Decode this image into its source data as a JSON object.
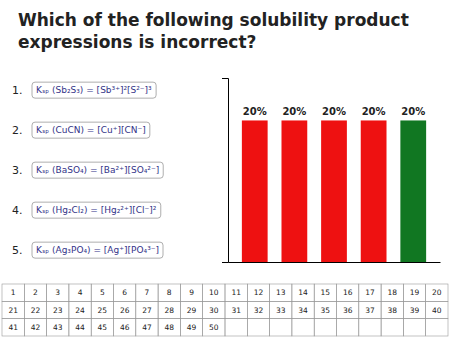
{
  "chart_data": {
    "type": "bar",
    "title": "Which of the following solubility product expressions is incorrect?",
    "categories": [
      null,
      null,
      null,
      null,
      null
    ],
    "values": [
      20,
      20,
      20,
      20,
      20
    ],
    "value_labels": [
      "20%",
      "20%",
      "20%",
      "20%",
      "20%"
    ],
    "data_labels": true,
    "colors": [
      "#EE1111",
      "#EE1111",
      "#EE1111",
      "#EE1111",
      "#117722"
    ],
    "ylim": [
      0,
      26
    ],
    "tick_labels": false,
    "annotations": [
      {
        "label": "1.",
        "text": "Kₛₚ (Sb₂S₃) = [Sb³⁺]²[S²⁻]³"
      },
      {
        "label": "2.",
        "text": "Kₛₚ (CuCN) = [Cu⁺][CN⁻]"
      },
      {
        "label": "3.",
        "text": "Kₛₚ (BaSO₄) = [Ba²⁺][SO₄²⁻]"
      },
      {
        "label": "4.",
        "text": "Kₛₚ (Hg₂Cl₂) = [Hg₂²⁺][Cl⁻]²"
      },
      {
        "label": "5.",
        "text": "Kₛₚ (Ag₃PO₄) = [Ag⁺][PO₄³⁻]"
      }
    ],
    "table_numbers": [
      [
        1,
        2,
        3,
        4,
        5,
        6,
        7,
        8,
        9,
        10,
        11,
        12,
        13,
        14,
        15,
        16,
        17,
        18,
        19,
        20
      ],
      [
        21,
        22,
        23,
        24,
        25,
        26,
        27,
        28,
        29,
        30,
        31,
        32,
        33,
        34,
        35,
        36,
        37,
        38,
        39,
        40
      ],
      [
        41,
        42,
        43,
        44,
        45,
        46,
        47,
        48,
        49,
        50
      ]
    ]
  }
}
